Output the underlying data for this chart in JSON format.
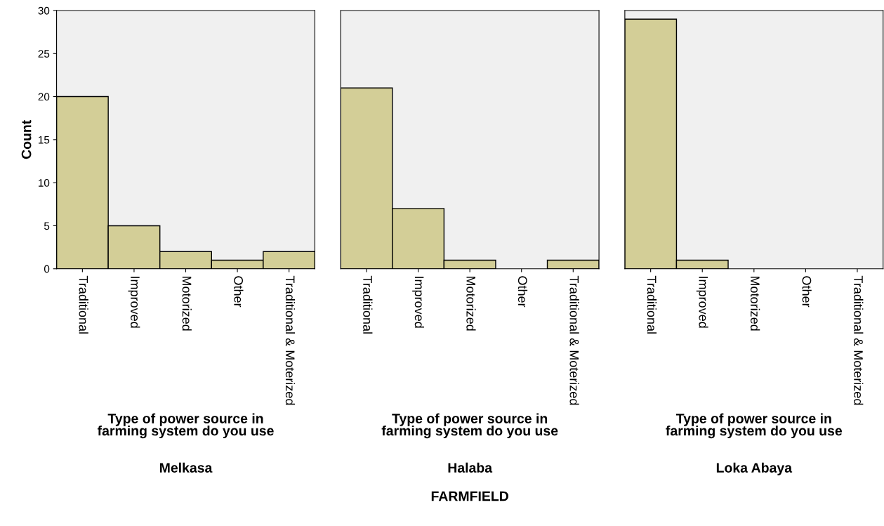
{
  "chart_data": [
    {
      "type": "bar",
      "title": "Melkasa",
      "xlabel": "Type of power source in\nfarming system do you use",
      "ylabel": "Count",
      "categories": [
        "Traditional",
        "Improved",
        "Motorized",
        "Other",
        "Traditional & Moterized"
      ],
      "values": [
        20,
        5,
        2,
        1,
        2
      ],
      "color": "#d3ce97",
      "ylim": [
        0,
        30
      ],
      "yticks": [
        0,
        5,
        10,
        15,
        20,
        25,
        30
      ],
      "grid": false
    },
    {
      "type": "bar",
      "title": "Halaba",
      "xlabel": "Type of power source in\nfarming system do you use",
      "categories": [
        "Traditional",
        "Improved",
        "Motorized",
        "Other",
        "Traditional & Moterized"
      ],
      "values": [
        21,
        7,
        1,
        0,
        1
      ],
      "color": "#d3ce97",
      "ylim": [
        0,
        30
      ],
      "yticks": [
        0,
        5,
        10,
        15,
        20,
        25,
        30
      ],
      "tick_labels": "x",
      "grid": false,
      "annotations": [
        "FARMFIELD"
      ]
    },
    {
      "type": "bar",
      "title": "Loka Abaya",
      "xlabel": "Type of power source in\nfarming system do you use",
      "categories": [
        "Traditional",
        "Improved",
        "Motorized",
        "Other",
        "Traditional & Moterized"
      ],
      "values": [
        29,
        1,
        0,
        0,
        0
      ],
      "color": "#d3ce97",
      "ylim": [
        0,
        30
      ],
      "yticks": [
        0,
        5,
        10,
        15,
        20,
        25,
        30
      ],
      "tick_labels": "x",
      "grid": false
    }
  ]
}
